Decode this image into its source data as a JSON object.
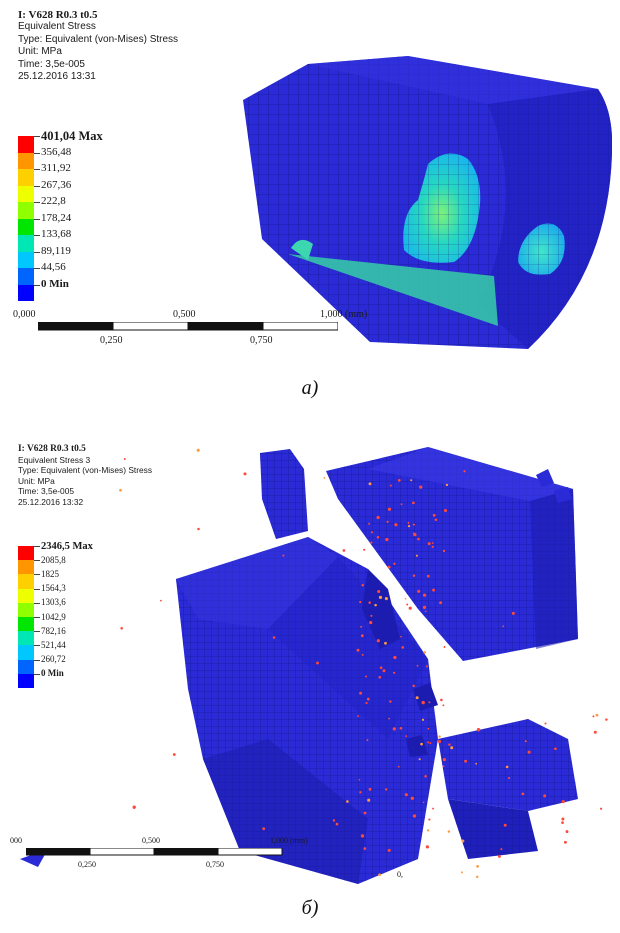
{
  "panel_a": {
    "title": "I: V628 R0.3 t0.5",
    "result": "Equivalent Stress",
    "type": "Type: Equivalent (von-Mises) Stress",
    "unit": "Unit: MPa",
    "time": "Time: 3,5e-005",
    "date": "25.12.2016 13:31",
    "legend": [
      "401,04 Max",
      "356,48",
      "311,92",
      "267,36",
      "222,8",
      "178,24",
      "133,68",
      "89,119",
      "44,56",
      "0 Min"
    ],
    "scale_top": [
      "0,000",
      "0,500",
      "1,000 (mm)"
    ],
    "scale_bottom": [
      "0,250",
      "0,750"
    ],
    "caption": "а)"
  },
  "panel_b": {
    "title": "I: V628 R0.3 t0.5",
    "result": "Equivalent Stress 3",
    "type": "Type: Equivalent (von-Mises) Stress",
    "unit": "Unit: MPa",
    "time": "Time: 3,5e-005",
    "date": "25.12.2016 13:32",
    "legend": [
      "2346,5 Max",
      "2085,8",
      "1825",
      "1564,3",
      "1303,6",
      "1042,9",
      "782,16",
      "521,44",
      "260,72",
      "0 Min"
    ],
    "scale_top": [
      "000",
      "0,500",
      "1,000 (mm)"
    ],
    "scale_bottom": [
      "0,250",
      "0,750"
    ],
    "stray_label": "0,",
    "caption": "б)"
  },
  "legend_colors": [
    "#ff0000",
    "#ff9600",
    "#ffd000",
    "#eeff00",
    "#90ff00",
    "#00e600",
    "#00e6b4",
    "#00c8ff",
    "#0064ff",
    "#0000ff"
  ],
  "mesh_color": "#2020d0"
}
